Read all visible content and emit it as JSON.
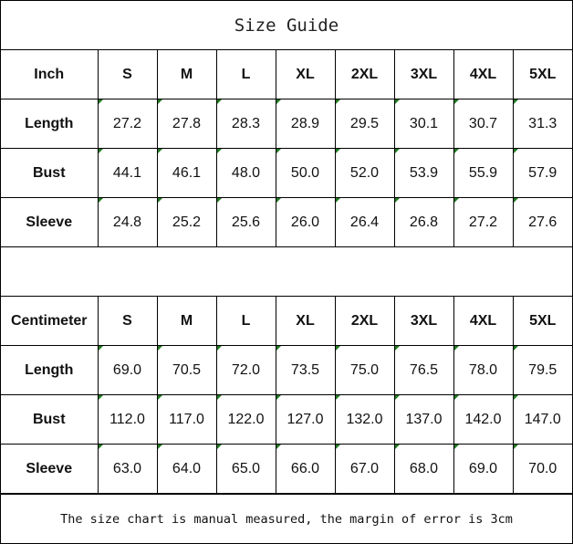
{
  "title": "Size Guide",
  "sizes": [
    "S",
    "M",
    "L",
    "XL",
    "2XL",
    "3XL",
    "4XL",
    "5XL"
  ],
  "tables": [
    {
      "unit": "Inch",
      "rows": [
        {
          "label": "Length",
          "values": [
            "27.2",
            "27.8",
            "28.3",
            "28.9",
            "29.5",
            "30.1",
            "30.7",
            "31.3"
          ]
        },
        {
          "label": "Bust",
          "values": [
            "44.1",
            "46.1",
            "48.0",
            "50.0",
            "52.0",
            "53.9",
            "55.9",
            "57.9"
          ]
        },
        {
          "label": "Sleeve",
          "values": [
            "24.8",
            "25.2",
            "25.6",
            "26.0",
            "26.4",
            "26.8",
            "27.2",
            "27.6"
          ]
        }
      ]
    },
    {
      "unit": "Centimeter",
      "rows": [
        {
          "label": "Length",
          "values": [
            "69.0",
            "70.5",
            "72.0",
            "73.5",
            "75.0",
            "76.5",
            "78.0",
            "79.5"
          ]
        },
        {
          "label": "Bust",
          "values": [
            "112.0",
            "117.0",
            "122.0",
            "127.0",
            "132.0",
            "137.0",
            "142.0",
            "147.0"
          ]
        },
        {
          "label": "Sleeve",
          "values": [
            "63.0",
            "64.0",
            "65.0",
            "66.0",
            "67.0",
            "68.0",
            "69.0",
            "70.0"
          ]
        }
      ]
    }
  ],
  "note": "The size chart is manual measured, the margin of error is 3cm",
  "colors": {
    "error_indicator": "#1f7a1f",
    "border": "#000000"
  }
}
